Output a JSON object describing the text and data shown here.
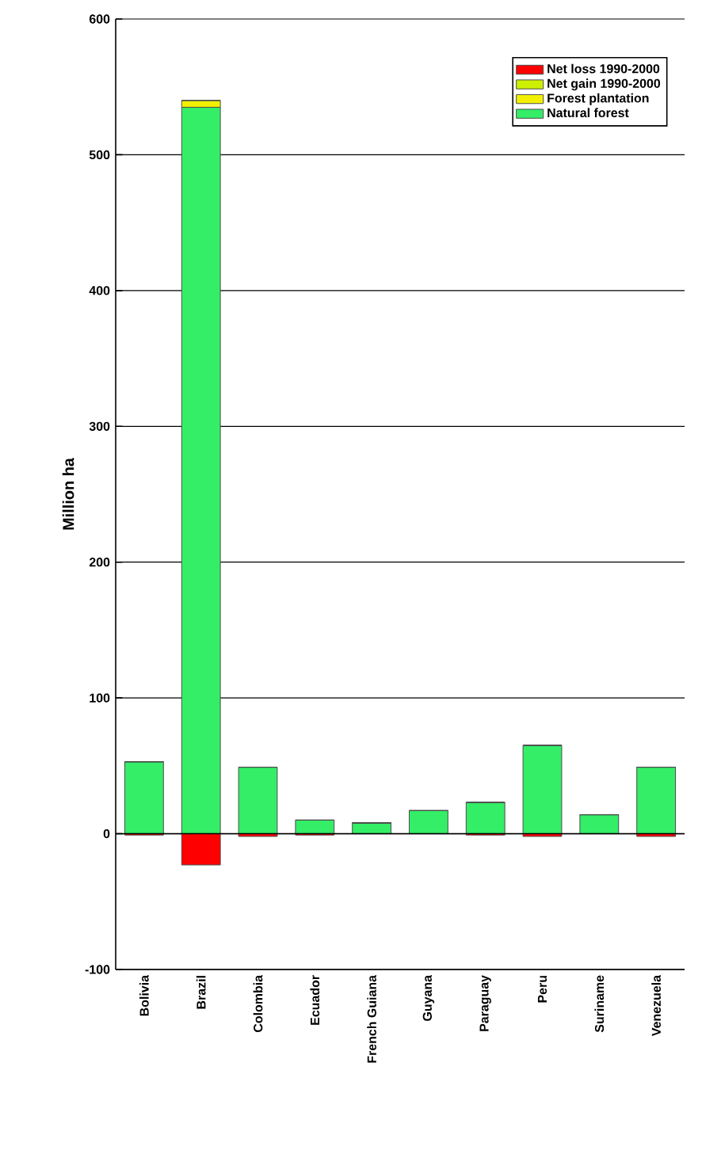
{
  "chart_data": {
    "type": "bar",
    "stacked": true,
    "ylabel": "Million ha",
    "categories": [
      "Bolivia",
      "Brazil",
      "Colombia",
      "Ecuador",
      "French Guiana",
      "Guyana",
      "Paraguay",
      "Peru",
      "Suriname",
      "Venezuela"
    ],
    "series": [
      {
        "name": "Natural forest",
        "color": "#33ee66",
        "values": [
          53,
          535,
          49,
          10,
          8,
          17,
          23,
          65,
          14,
          49
        ]
      },
      {
        "name": "Forest plantation",
        "color": "#f2f000",
        "values": [
          0,
          5,
          0,
          0,
          0,
          0,
          0,
          0,
          0,
          0
        ]
      },
      {
        "name": "Net gain 1990-2000",
        "color": "#ccf000",
        "values": [
          0,
          0,
          0,
          0,
          0,
          0,
          0,
          0,
          0,
          0
        ]
      },
      {
        "name": "Net loss 1990-2000",
        "color": "#ff0000",
        "values": [
          -1,
          -23,
          -2,
          -1,
          0,
          0,
          -1,
          -2,
          0,
          -2
        ]
      }
    ],
    "ylim": [
      -100,
      600
    ],
    "yticks": [
      -100,
      0,
      100,
      200,
      300,
      400,
      500,
      600
    ],
    "grid": "y",
    "legend": "top right"
  }
}
